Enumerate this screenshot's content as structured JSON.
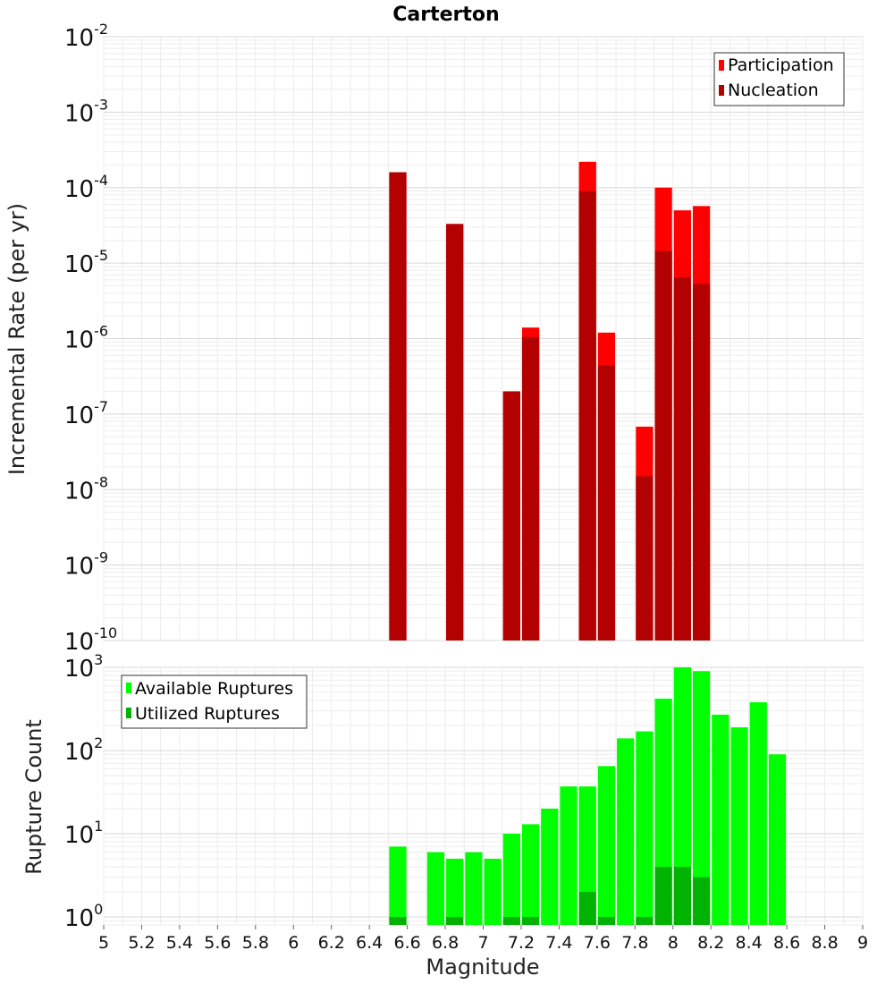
{
  "chart_data": [
    {
      "type": "bar",
      "title": "Carterton",
      "xlabel": "",
      "ylabel": "Incremental Rate (per yr)",
      "y_scale": "log",
      "ylim": [
        1e-10,
        0.01
      ],
      "xlim": [
        5,
        9
      ],
      "y_tick_labels": [
        {
          "base": "10",
          "exp": "-10",
          "v": 1e-10
        },
        {
          "base": "10",
          "exp": "-9",
          "v": 1e-09
        },
        {
          "base": "10",
          "exp": "-8",
          "v": 1e-08
        },
        {
          "base": "10",
          "exp": "-7",
          "v": 1e-07
        },
        {
          "base": "10",
          "exp": "-6",
          "v": 1e-06
        },
        {
          "base": "10",
          "exp": "-5",
          "v": 1e-05
        },
        {
          "base": "10",
          "exp": "-4",
          "v": 0.0001
        },
        {
          "base": "10",
          "exp": "-3",
          "v": 0.001
        },
        {
          "base": "10",
          "exp": "-2",
          "v": 0.01
        }
      ],
      "grid": true,
      "legend_position": "top-right",
      "legend": [
        "Participation",
        "Nucleation"
      ],
      "series": [
        {
          "name": "Participation",
          "color": "#ff0000",
          "x": [
            6.55,
            6.85,
            7.15,
            7.25,
            7.55,
            7.65,
            7.85,
            7.95,
            8.05,
            8.15
          ],
          "values": [
            0.00016,
            3.3e-05,
            2e-07,
            1.4e-06,
            0.00022,
            1.2e-06,
            6.8e-08,
            0.0001,
            5e-05,
            5.7e-05
          ]
        },
        {
          "name": "Nucleation",
          "color": "#b30000",
          "x": [
            6.55,
            6.85,
            7.15,
            7.25,
            7.55,
            7.65,
            7.85,
            7.95,
            8.05,
            8.15
          ],
          "values": [
            0.00016,
            3.3e-05,
            2e-07,
            1.05e-06,
            9e-05,
            4.4e-07,
            1.5e-08,
            1.45e-05,
            6.5e-06,
            5.3e-06
          ]
        }
      ]
    },
    {
      "type": "bar",
      "title": "",
      "xlabel": "Magnitude",
      "ylabel": "Rupture Count",
      "y_scale": "log",
      "ylim": [
        0.8,
        1000
      ],
      "xlim": [
        5,
        9
      ],
      "x_ticks": [
        "5",
        "5.2",
        "5.4",
        "5.6",
        "5.8",
        "6",
        "6.2",
        "6.4",
        "6.6",
        "6.8",
        "7",
        "7.2",
        "7.4",
        "7.6",
        "7.8",
        "8",
        "8.2",
        "8.4",
        "8.6",
        "8.8",
        "9"
      ],
      "y_tick_labels": [
        {
          "base": "10",
          "exp": "0",
          "v": 1
        },
        {
          "base": "10",
          "exp": "1",
          "v": 10
        },
        {
          "base": "10",
          "exp": "2",
          "v": 100
        },
        {
          "base": "10",
          "exp": "3",
          "v": 1000
        }
      ],
      "grid": true,
      "legend_position": "top-left",
      "legend": [
        "Available Ruptures",
        "Utilized Ruptures"
      ],
      "series": [
        {
          "name": "Available Ruptures",
          "color": "#00ff00",
          "x": [
            6.55,
            6.75,
            6.85,
            6.95,
            7.05,
            7.15,
            7.25,
            7.35,
            7.45,
            7.55,
            7.65,
            7.75,
            7.85,
            7.95,
            8.05,
            8.15,
            8.25,
            8.35,
            8.45,
            8.55
          ],
          "values": [
            7,
            6,
            5,
            6,
            5,
            10,
            13,
            20,
            37,
            37,
            65,
            140,
            170,
            420,
            1000,
            900,
            270,
            190,
            380,
            90
          ]
        },
        {
          "name": "Utilized Ruptures",
          "color": "#00b300",
          "x": [
            6.55,
            6.85,
            7.15,
            7.25,
            7.55,
            7.65,
            7.85,
            7.95,
            8.05,
            8.15
          ],
          "values": [
            1,
            1,
            1,
            1,
            2,
            1,
            1,
            4,
            4,
            3
          ]
        }
      ]
    }
  ]
}
